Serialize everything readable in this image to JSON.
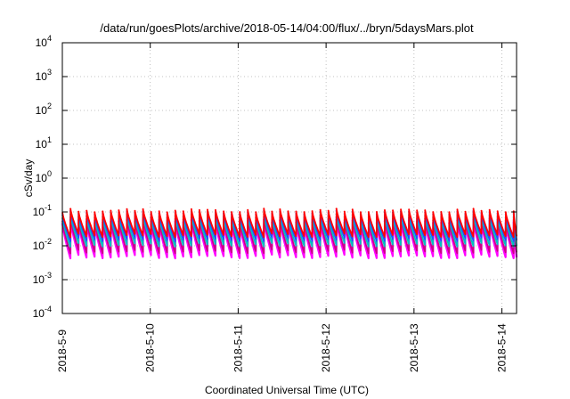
{
  "chart_data": {
    "type": "line",
    "title": "/data/run/goesPlots/archive/2018-05-14/04:00/flux/../bryn/5daysMars.plot",
    "xlabel": "Coordinated Universal Time (UTC)",
    "ylabel": "cSv/day",
    "yscale": "log",
    "ylim": [
      0.0001,
      10000
    ],
    "y_ticks": [
      {
        "base": "10",
        "exp": "-4",
        "value": 0.0001
      },
      {
        "base": "10",
        "exp": "-3",
        "value": 0.001
      },
      {
        "base": "10",
        "exp": "-2",
        "value": 0.01
      },
      {
        "base": "10",
        "exp": "-1",
        "value": 0.1
      },
      {
        "base": "10",
        "exp": "0",
        "value": 1
      },
      {
        "base": "10",
        "exp": "1",
        "value": 10
      },
      {
        "base": "10",
        "exp": "2",
        "value": 100
      },
      {
        "base": "10",
        "exp": "3",
        "value": 1000
      },
      {
        "base": "10",
        "exp": "4",
        "value": 10000
      }
    ],
    "x_ticks": [
      "2018-5-9",
      "2018-5-10",
      "2018-5-11",
      "2018-5-12",
      "2018-5-13",
      "2018-5-14"
    ],
    "xlim": [
      "2018-05-09 00:00",
      "2018-05-14 04:00"
    ],
    "grid": true,
    "approximate_sawtooth_period_hours": 2.2,
    "series": [
      {
        "color": "#ff00ff",
        "peak": 0.055,
        "trough": 0.005
      },
      {
        "color": "#cc0088",
        "peak": 0.065,
        "trough": 0.007
      },
      {
        "color": "#00c0c0",
        "peak": 0.08,
        "trough": 0.011
      },
      {
        "color": "#2050ff",
        "peak": 0.1,
        "trough": 0.016
      },
      {
        "color": "#ff0000",
        "peak": 0.115,
        "trough": 0.021
      }
    ]
  }
}
